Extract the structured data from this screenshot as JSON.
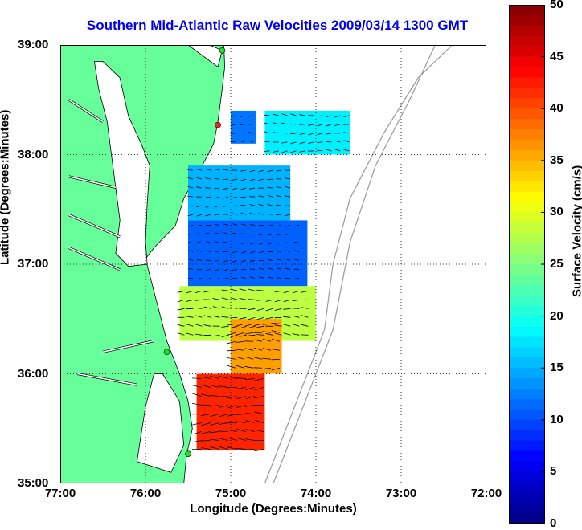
{
  "title": "Southern Mid-Atlantic Raw Velocities 2009/03/14 1300 GMT",
  "xlabel": "Longitude (Degrees:Minutes)",
  "ylabel": "Latitude (Degrees:Minutes)",
  "colorbar_label": "Surface Velocity (cm/s)",
  "chart_data": {
    "type": "heatmap",
    "title": "Southern Mid-Atlantic Raw Velocities 2009/03/14 1300 GMT",
    "xlabel": "Longitude (Degrees:Minutes)",
    "ylabel": "Latitude (Degrees:Minutes)",
    "x_ticks": [
      "77:00",
      "76:00",
      "75:00",
      "74:00",
      "73:00",
      "72:00"
    ],
    "y_ticks": [
      "39:00",
      "38:00",
      "37:00",
      "36:00",
      "35:00"
    ],
    "xlim": [
      -77,
      -72
    ],
    "ylim": [
      35,
      39
    ],
    "grid": true,
    "colorbar": {
      "label": "Surface Velocity (cm/s)",
      "range": [
        0,
        50
      ],
      "ticks": [
        0,
        5,
        10,
        15,
        20,
        25,
        30,
        35,
        40,
        45,
        50
      ],
      "colormap": "jet"
    },
    "velocity_regions": [
      {
        "lon": [
          -75.0,
          -74.7
        ],
        "lat": [
          38.1,
          38.4
        ],
        "speed": 12
      },
      {
        "lon": [
          -74.6,
          -73.6
        ],
        "lat": [
          38.0,
          38.4
        ],
        "speed": 18
      },
      {
        "lon": [
          -75.5,
          -74.3
        ],
        "lat": [
          37.4,
          37.9
        ],
        "speed": 15
      },
      {
        "lon": [
          -75.5,
          -74.1
        ],
        "lat": [
          36.8,
          37.4
        ],
        "speed": 11
      },
      {
        "lon": [
          -75.6,
          -74.0
        ],
        "lat": [
          36.3,
          36.8
        ],
        "speed": 28
      },
      {
        "lon": [
          -75.0,
          -74.4
        ],
        "lat": [
          36.0,
          36.5
        ],
        "speed": 36
      },
      {
        "lon": [
          -75.4,
          -74.6
        ],
        "lat": [
          35.3,
          36.0
        ],
        "speed": 42
      }
    ],
    "station_markers": [
      {
        "lon": -75.1,
        "lat": 38.95,
        "color": "#22dd22"
      },
      {
        "lon": -75.15,
        "lat": 38.27,
        "color": "#ee2222"
      },
      {
        "lon": -75.75,
        "lat": 36.2,
        "color": "#22dd22"
      },
      {
        "lon": -75.5,
        "lat": 35.27,
        "color": "#22dd22"
      }
    ],
    "colors": {
      "land": "#66ff99",
      "title": "#0000ee",
      "vector": "#000000",
      "bathymetry": "#999999"
    }
  }
}
